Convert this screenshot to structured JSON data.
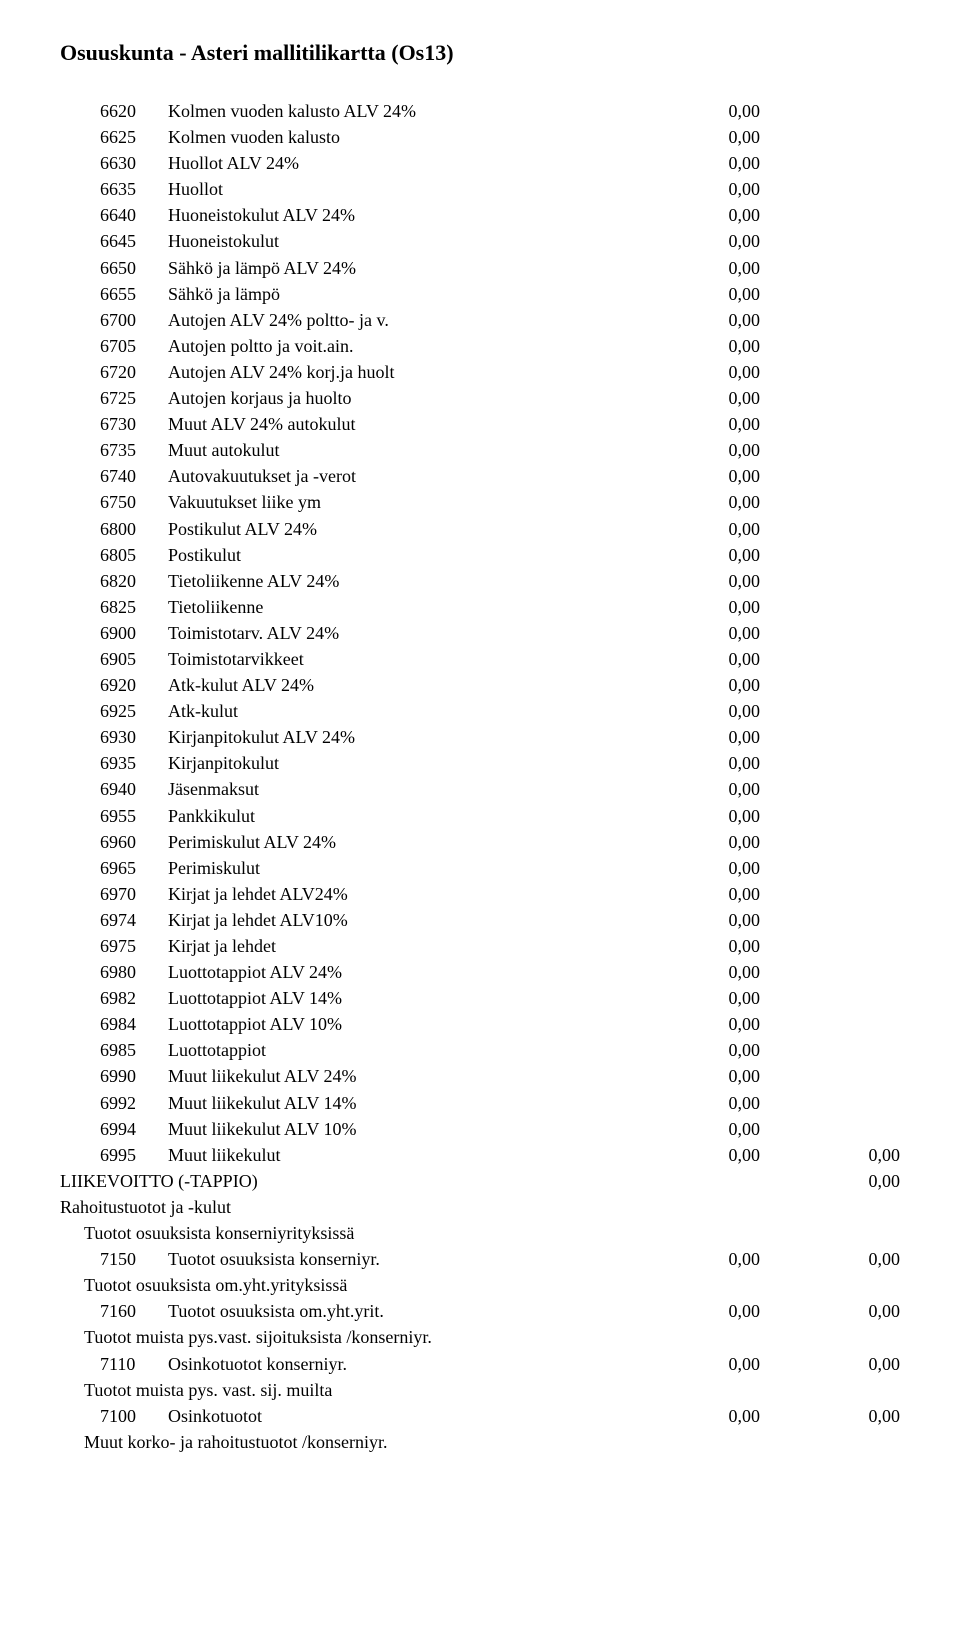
{
  "title": "Osuuskunta - Asteri mallitilikartta (Os13)",
  "main_rows": [
    {
      "code": "6620",
      "desc": "Kolmen vuoden kalusto ALV 24%",
      "a1": "0,00",
      "a2": ""
    },
    {
      "code": "6625",
      "desc": "Kolmen vuoden kalusto",
      "a1": "0,00",
      "a2": ""
    },
    {
      "code": "6630",
      "desc": "Huollot ALV 24%",
      "a1": "0,00",
      "a2": ""
    },
    {
      "code": "6635",
      "desc": "Huollot",
      "a1": "0,00",
      "a2": ""
    },
    {
      "code": "6640",
      "desc": "Huoneistokulut ALV 24%",
      "a1": "0,00",
      "a2": ""
    },
    {
      "code": "6645",
      "desc": "Huoneistokulut",
      "a1": "0,00",
      "a2": ""
    },
    {
      "code": "6650",
      "desc": "Sähkö ja lämpö ALV 24%",
      "a1": "0,00",
      "a2": ""
    },
    {
      "code": "6655",
      "desc": "Sähkö ja lämpö",
      "a1": "0,00",
      "a2": ""
    },
    {
      "code": "6700",
      "desc": "Autojen ALV 24% poltto- ja v.",
      "a1": "0,00",
      "a2": ""
    },
    {
      "code": "6705",
      "desc": "Autojen poltto ja voit.ain.",
      "a1": "0,00",
      "a2": ""
    },
    {
      "code": "6720",
      "desc": "Autojen ALV 24% korj.ja huolt",
      "a1": "0,00",
      "a2": ""
    },
    {
      "code": "6725",
      "desc": "Autojen korjaus ja huolto",
      "a1": "0,00",
      "a2": ""
    },
    {
      "code": "6730",
      "desc": "Muut ALV 24% autokulut",
      "a1": "0,00",
      "a2": ""
    },
    {
      "code": "6735",
      "desc": "Muut autokulut",
      "a1": "0,00",
      "a2": ""
    },
    {
      "code": "6740",
      "desc": "Autovakuutukset ja -verot",
      "a1": "0,00",
      "a2": ""
    },
    {
      "code": "6750",
      "desc": "Vakuutukset liike ym",
      "a1": "0,00",
      "a2": ""
    },
    {
      "code": "6800",
      "desc": "Postikulut ALV 24%",
      "a1": "0,00",
      "a2": ""
    },
    {
      "code": "6805",
      "desc": "Postikulut",
      "a1": "0,00",
      "a2": ""
    },
    {
      "code": "6820",
      "desc": "Tietoliikenne ALV 24%",
      "a1": "0,00",
      "a2": ""
    },
    {
      "code": "6825",
      "desc": "Tietoliikenne",
      "a1": "0,00",
      "a2": ""
    },
    {
      "code": "6900",
      "desc": "Toimistotarv. ALV 24%",
      "a1": "0,00",
      "a2": ""
    },
    {
      "code": "6905",
      "desc": "Toimistotarvikkeet",
      "a1": "0,00",
      "a2": ""
    },
    {
      "code": "6920",
      "desc": "Atk-kulut ALV 24%",
      "a1": "0,00",
      "a2": ""
    },
    {
      "code": "6925",
      "desc": "Atk-kulut",
      "a1": "0,00",
      "a2": ""
    },
    {
      "code": "6930",
      "desc": "Kirjanpitokulut ALV 24%",
      "a1": "0,00",
      "a2": ""
    },
    {
      "code": "6935",
      "desc": "Kirjanpitokulut",
      "a1": "0,00",
      "a2": ""
    },
    {
      "code": "6940",
      "desc": "Jäsenmaksut",
      "a1": "0,00",
      "a2": ""
    },
    {
      "code": "6955",
      "desc": "Pankkikulut",
      "a1": "0,00",
      "a2": ""
    },
    {
      "code": "6960",
      "desc": "Perimiskulut ALV 24%",
      "a1": "0,00",
      "a2": ""
    },
    {
      "code": "6965",
      "desc": "Perimiskulut",
      "a1": "0,00",
      "a2": ""
    },
    {
      "code": "6970",
      "desc": "Kirjat ja lehdet ALV24%",
      "a1": "0,00",
      "a2": ""
    },
    {
      "code": "6974",
      "desc": "Kirjat ja lehdet ALV10%",
      "a1": "0,00",
      "a2": ""
    },
    {
      "code": "6975",
      "desc": "Kirjat ja lehdet",
      "a1": "0,00",
      "a2": ""
    },
    {
      "code": "6980",
      "desc": "Luottotappiot ALV 24%",
      "a1": "0,00",
      "a2": ""
    },
    {
      "code": "6982",
      "desc": "Luottotappiot ALV 14%",
      "a1": "0,00",
      "a2": ""
    },
    {
      "code": "6984",
      "desc": "Luottotappiot ALV 10%",
      "a1": "0,00",
      "a2": ""
    },
    {
      "code": "6985",
      "desc": "Luottotappiot",
      "a1": "0,00",
      "a2": ""
    },
    {
      "code": "6990",
      "desc": "Muut liikekulut ALV 24%",
      "a1": "0,00",
      "a2": ""
    },
    {
      "code": "6992",
      "desc": "Muut liikekulut ALV 14%",
      "a1": "0,00",
      "a2": ""
    },
    {
      "code": "6994",
      "desc": "Muut liikekulut ALV 10%",
      "a1": "0,00",
      "a2": ""
    },
    {
      "code": "6995",
      "desc": "Muut liikekulut",
      "a1": "0,00",
      "a2": "0,00"
    }
  ],
  "sections": {
    "liikevoitto": {
      "text": "LIIKEVOITTO (-TAPPIO)",
      "amt": "0,00"
    },
    "rahoitus": "Rahoitustuotot ja -kulut",
    "sub1": {
      "header": "Tuotot osuuksista konserniyrityksissä",
      "row": {
        "code": "7150",
        "desc": "Tuotot osuuksista konserniyr.",
        "a1": "0,00",
        "a2": "0,00"
      }
    },
    "sub2": {
      "header": "Tuotot osuuksista om.yht.yrityksissä",
      "row": {
        "code": "7160",
        "desc": "Tuotot osuuksista om.yht.yrit.",
        "a1": "0,00",
        "a2": "0,00"
      }
    },
    "sub3": {
      "header": "Tuotot muista pys.vast. sijoituksista /konserniyr.",
      "row": {
        "code": "7110",
        "desc": "Osinkotuotot konserniyr.",
        "a1": "0,00",
        "a2": "0,00"
      }
    },
    "sub4": {
      "header": "Tuotot muista pys. vast. sij. muilta",
      "row": {
        "code": "7100",
        "desc": "Osinkotuotot",
        "a1": "0,00",
        "a2": "0,00"
      }
    },
    "sub5": {
      "header": "Muut korko- ja rahoitustuotot /konserniyr."
    }
  }
}
